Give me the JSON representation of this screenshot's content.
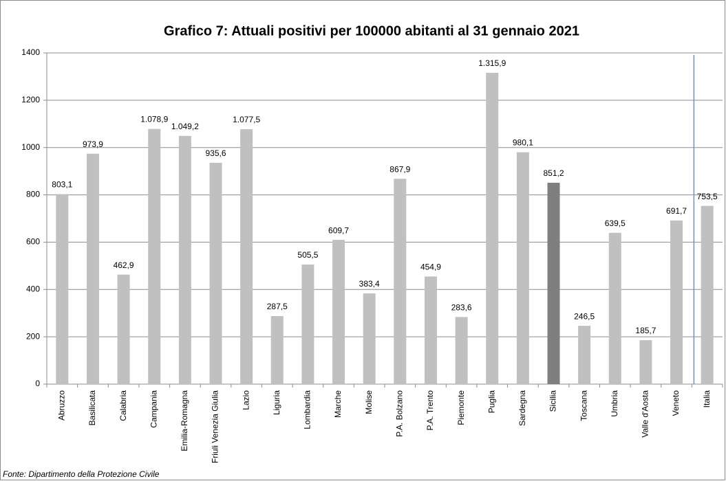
{
  "chart_data": {
    "type": "bar",
    "title": "Grafico 7: Attuali positivi per 100000 abitanti al 31 gennaio 2021",
    "source": "Fonte: Dipartimento della Protezione Civile",
    "categories": [
      "Abruzzo",
      "Basilicata",
      "Calabria",
      "Campania",
      "Emilia-Romagna",
      "Friuli Venezia Giulia",
      "Lazio",
      "Liguria",
      "Lombardia",
      "Marche",
      "Molise",
      "P.A. Bolzano",
      "P.A. Trento",
      "Piemonte",
      "Puglia",
      "Sardegna",
      "Sicilia",
      "Toscana",
      "Umbria",
      "Valle d'Aosta",
      "Veneto",
      "Italia"
    ],
    "values": [
      803.1,
      973.9,
      462.9,
      1078.9,
      1049.2,
      935.6,
      1077.5,
      287.5,
      505.5,
      609.7,
      383.4,
      867.9,
      454.9,
      283.6,
      1315.9,
      980.1,
      851.2,
      246.5,
      639.5,
      185.7,
      691.7,
      753.5
    ],
    "value_labels": [
      "803,1",
      "973,9",
      "462,9",
      "1.078,9",
      "1.049,2",
      "935,6",
      "1.077,5",
      "287,5",
      "505,5",
      "609,7",
      "383,4",
      "867,9",
      "454,9",
      "283,6",
      "1.315,9",
      "980,1",
      "851,2",
      "246,5",
      "639,5",
      "185,7",
      "691,7",
      "753,5"
    ],
    "colors": [
      "#c0c0c0",
      "#c0c0c0",
      "#c0c0c0",
      "#c0c0c0",
      "#c0c0c0",
      "#c0c0c0",
      "#c0c0c0",
      "#c0c0c0",
      "#c0c0c0",
      "#c0c0c0",
      "#c0c0c0",
      "#c0c0c0",
      "#c0c0c0",
      "#c0c0c0",
      "#c0c0c0",
      "#c0c0c0",
      "#7f7f7f",
      "#c0c0c0",
      "#c0c0c0",
      "#c0c0c0",
      "#c0c0c0",
      "#c0c0c0"
    ],
    "ylim": [
      0,
      1400
    ],
    "yticks": [
      0,
      200,
      400,
      600,
      800,
      1000,
      1200,
      1400
    ],
    "grid": true
  }
}
